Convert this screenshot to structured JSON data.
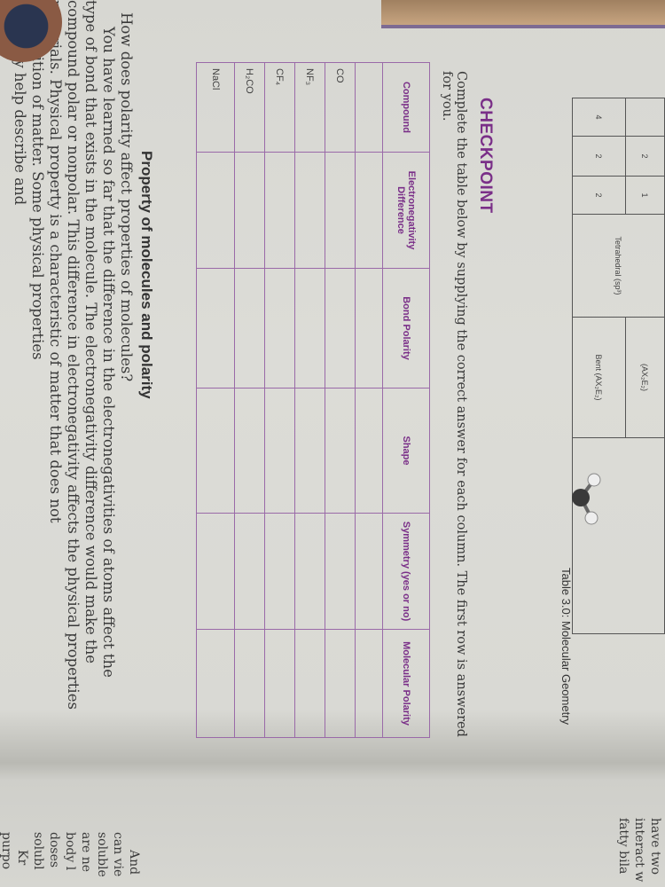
{
  "geometry_table": {
    "caption": "Table 3.0: Molecular Geometry",
    "row_a": [
      "",
      "2",
      "1",
      "Tetrahedral (sp³)",
      "(AX₂E₂)",
      ""
    ],
    "row_b": [
      "4",
      "2",
      "2",
      "",
      "Bent (AX₂E₂)",
      ""
    ]
  },
  "checkpoint": {
    "title": "CHECKPOINT",
    "instructions": "Complete the table below by supplying the correct answer for each column. The first row is answered for you.",
    "headers": [
      "Compound",
      "Electronegativity Difference",
      "Bond Polarity",
      "Shape",
      "Symmetry (yes or no)",
      "Molecular Polarity"
    ],
    "compounds": [
      "",
      "CO",
      "NF₃",
      "CF₄",
      "H₂CO",
      "NaCl"
    ]
  },
  "section": {
    "heading": "Property of molecules and polarity",
    "question": "How does polarity affect properties of molecules?",
    "lines": [
      "You have learned so far that the difference in the electronegativities of atoms affect the",
      "type of bond that exists in the molecule. The electronegativity difference would make the",
      "compound polar or nonpolar. This difference in electronegativity affects the physical properties",
      "materials. Physical property is a characteristic of matter that does not",
      "composition of matter. Some physical properties",
      "solubility help describe and"
    ]
  },
  "right_page": {
    "top_lines": [
      "have two",
      "interact w",
      "fatty bila"
    ],
    "bottom_lines": [
      "And",
      "can vie",
      "soluble",
      "are ne",
      "body l",
      "doses",
      "solubl",
      "Kr",
      "purpo"
    ]
  },
  "colors": {
    "accent": "#7a2f88",
    "table_lines": "#9a6aa8",
    "paper": "#d8d8d3"
  }
}
